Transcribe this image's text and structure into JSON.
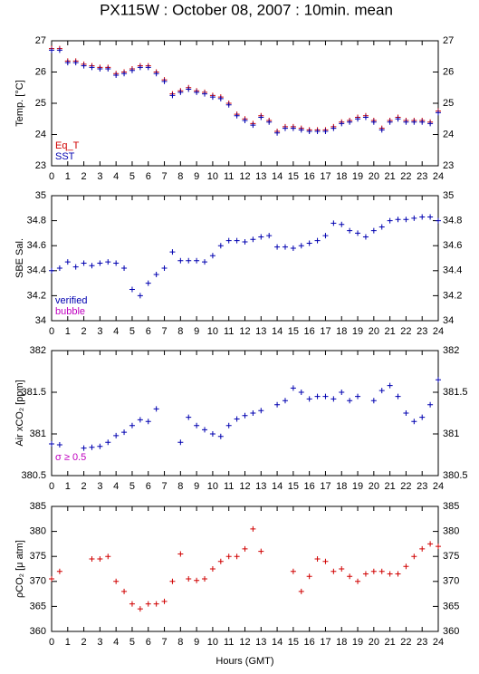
{
  "title": "PX115W : October 08, 2007 : 10min. mean",
  "chart_data": [
    {
      "type": "scatter",
      "ylabel": "Temp. [°C]",
      "ylim": [
        23,
        27
      ],
      "yticks": [
        23,
        24,
        25,
        26,
        27
      ],
      "xlim": [
        0,
        24
      ],
      "xticks": [
        0,
        1,
        2,
        3,
        4,
        5,
        6,
        7,
        8,
        9,
        10,
        11,
        12,
        13,
        14,
        15,
        16,
        17,
        18,
        19,
        20,
        21,
        22,
        23,
        24
      ],
      "x": [
        0,
        0.5,
        1,
        1.5,
        2,
        2.5,
        3,
        3.5,
        4,
        4.5,
        5,
        5.5,
        6,
        6.5,
        7,
        7.5,
        8,
        8.5,
        9,
        9.5,
        10,
        10.5,
        11,
        11.5,
        12,
        12.5,
        13,
        13.5,
        14,
        14.5,
        15,
        15.5,
        16,
        16.5,
        17,
        17.5,
        18,
        18.5,
        19,
        19.5,
        20,
        20.5,
        21,
        21.5,
        22,
        22.5,
        23,
        23.5,
        24
      ],
      "series": [
        {
          "name": "Eq_T",
          "color": "#d00000",
          "values": [
            26.75,
            26.75,
            26.35,
            26.35,
            26.25,
            26.2,
            26.15,
            26.15,
            25.95,
            26,
            26.1,
            26.2,
            26.2,
            26,
            25.75,
            25.3,
            25.4,
            25.5,
            25.4,
            25.35,
            25.25,
            25.2,
            25,
            24.65,
            24.5,
            24.35,
            24.6,
            24.45,
            24.1,
            24.25,
            24.25,
            24.2,
            24.15,
            24.15,
            24.15,
            24.25,
            24.4,
            24.45,
            24.55,
            24.6,
            24.45,
            24.2,
            24.45,
            24.55,
            24.45,
            24.45,
            24.45,
            24.4,
            24.75
          ]
        },
        {
          "name": "SST",
          "color": "#0000b0",
          "values": [
            26.7,
            26.7,
            26.3,
            26.3,
            26.2,
            26.15,
            26.1,
            26.1,
            25.9,
            25.95,
            26.05,
            26.15,
            26.15,
            25.95,
            25.7,
            25.25,
            25.35,
            25.45,
            25.35,
            25.3,
            25.2,
            25.15,
            24.95,
            24.6,
            24.45,
            24.3,
            24.55,
            24.4,
            24.05,
            24.2,
            24.2,
            24.15,
            24.1,
            24.1,
            24.1,
            24.2,
            24.35,
            24.4,
            24.5,
            24.55,
            24.4,
            24.15,
            24.4,
            24.5,
            24.4,
            24.4,
            24.4,
            24.35,
            24.7
          ]
        }
      ]
    },
    {
      "type": "scatter",
      "ylabel": "SBE Sal.",
      "ylim": [
        34,
        35
      ],
      "yticks": [
        34,
        34.2,
        34.4,
        34.6,
        34.8,
        35
      ],
      "xlim": [
        0,
        24
      ],
      "xticks": [
        0,
        1,
        2,
        3,
        4,
        5,
        6,
        7,
        8,
        9,
        10,
        11,
        12,
        13,
        14,
        15,
        16,
        17,
        18,
        19,
        20,
        21,
        22,
        23,
        24
      ],
      "x": [
        0,
        0.5,
        1,
        1.5,
        2,
        2.5,
        3,
        3.5,
        4,
        4.5,
        5,
        5.5,
        6,
        6.5,
        7,
        7.5,
        8,
        8.5,
        9,
        9.5,
        10,
        10.5,
        11,
        11.5,
        12,
        12.5,
        13,
        13.5,
        14,
        14.5,
        15,
        15.5,
        16,
        16.5,
        17,
        17.5,
        18,
        18.5,
        19,
        19.5,
        20,
        20.5,
        21,
        21.5,
        22,
        22.5,
        23,
        23.5,
        24
      ],
      "series": [
        {
          "name": "verified",
          "color": "#0000b0",
          "values": [
            34.4,
            34.42,
            34.47,
            34.43,
            34.46,
            34.44,
            34.46,
            34.47,
            34.46,
            34.42,
            34.25,
            34.2,
            34.3,
            34.37,
            34.42,
            34.55,
            34.48,
            34.48,
            34.48,
            34.47,
            34.52,
            34.6,
            34.64,
            34.64,
            34.63,
            34.65,
            34.67,
            34.68,
            34.59,
            34.59,
            34.58,
            34.6,
            34.62,
            34.64,
            34.68,
            34.78,
            34.77,
            34.72,
            34.7,
            34.67,
            34.72,
            34.75,
            34.8,
            34.81,
            34.81,
            34.82,
            34.83,
            34.83,
            34.8
          ]
        },
        {
          "name": "bubble",
          "color": "#c000c0",
          "values": [
            null,
            null,
            null,
            null,
            null,
            null,
            null,
            null,
            null,
            null,
            null,
            null,
            null,
            null,
            null,
            null,
            null,
            null,
            null,
            null,
            null,
            null,
            null,
            null,
            null,
            null,
            null,
            null,
            null,
            null,
            null,
            null,
            null,
            null,
            null,
            null,
            null,
            null,
            null,
            null,
            null,
            null,
            null,
            null,
            null,
            null,
            null,
            null,
            null
          ]
        }
      ]
    },
    {
      "type": "scatter",
      "ylabel": "Air xCO₂ [ppm]",
      "ylim": [
        380.5,
        382
      ],
      "yticks": [
        380.5,
        381,
        381.5,
        382
      ],
      "xlim": [
        0,
        24
      ],
      "annotation": "σ ≥ 0.5",
      "annotation_color": "#c000c0",
      "xticks": [
        0,
        1,
        2,
        3,
        4,
        5,
        6,
        7,
        8,
        9,
        10,
        11,
        12,
        13,
        14,
        15,
        16,
        17,
        18,
        19,
        20,
        21,
        22,
        23,
        24
      ],
      "x": [
        0,
        0.5,
        1,
        1.5,
        2,
        2.5,
        3,
        3.5,
        4,
        4.5,
        5,
        5.5,
        6,
        6.5,
        7,
        7.5,
        8,
        8.5,
        9,
        9.5,
        10,
        10.5,
        11,
        11.5,
        12,
        12.5,
        13,
        13.5,
        14,
        14.5,
        15,
        15.5,
        16,
        16.5,
        17,
        17.5,
        18,
        18.5,
        19,
        19.5,
        20,
        20.5,
        21,
        21.5,
        22,
        22.5,
        23,
        23.5,
        24
      ],
      "series": [
        {
          "name": "Air xCO2",
          "color": "#0000b0",
          "values": [
            380.88,
            380.87,
            null,
            null,
            380.83,
            380.84,
            380.85,
            380.9,
            380.98,
            381.02,
            381.1,
            381.17,
            381.15,
            381.3,
            null,
            null,
            380.9,
            381.2,
            381.1,
            381.05,
            381,
            380.97,
            381.1,
            381.18,
            381.22,
            381.25,
            381.28,
            null,
            381.35,
            381.4,
            381.55,
            381.5,
            381.42,
            381.45,
            381.45,
            381.42,
            381.5,
            381.4,
            381.45,
            null,
            381.4,
            381.52,
            381.58,
            381.45,
            381.25,
            381.15,
            381.2,
            381.35,
            381.65
          ]
        }
      ]
    },
    {
      "type": "scatter",
      "ylabel": "ρCO₂ [μ atm]",
      "xlabel": "Hours (GMT)",
      "ylim": [
        360,
        385
      ],
      "yticks": [
        360,
        365,
        370,
        375,
        380,
        385
      ],
      "xlim": [
        0,
        24
      ],
      "xticks": [
        0,
        1,
        2,
        3,
        4,
        5,
        6,
        7,
        8,
        9,
        10,
        11,
        12,
        13,
        14,
        15,
        16,
        17,
        18,
        19,
        20,
        21,
        22,
        23,
        24
      ],
      "x": [
        0,
        0.5,
        1,
        1.5,
        2,
        2.5,
        3,
        3.5,
        4,
        4.5,
        5,
        5.5,
        6,
        6.5,
        7,
        7.5,
        8,
        8.5,
        9,
        9.5,
        10,
        10.5,
        11,
        11.5,
        12,
        12.5,
        13,
        13.5,
        14,
        14.5,
        15,
        15.5,
        16,
        16.5,
        17,
        17.5,
        18,
        18.5,
        19,
        19.5,
        20,
        20.5,
        21,
        21.5,
        22,
        22.5,
        23,
        23.5,
        24
      ],
      "series": [
        {
          "name": "pCO2",
          "color": "#d00000",
          "values": [
            370.5,
            372,
            null,
            null,
            null,
            374.5,
            374.5,
            375,
            370,
            368,
            365.5,
            364.5,
            365.5,
            365.5,
            366,
            370,
            375.5,
            370.5,
            370.2,
            370.5,
            372.5,
            374,
            375,
            375,
            376.5,
            380.5,
            376,
            null,
            null,
            null,
            372,
            368,
            371,
            374.5,
            374,
            372,
            372.5,
            371,
            370,
            371.5,
            372,
            372,
            371.5,
            371.5,
            373,
            375,
            376.5,
            377.5,
            377
          ]
        }
      ]
    }
  ]
}
